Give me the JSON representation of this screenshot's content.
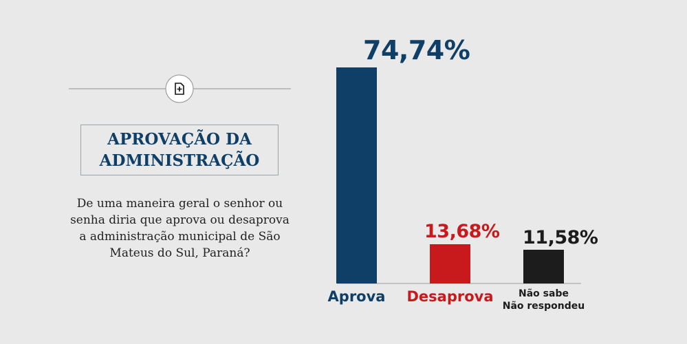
{
  "chart_data": {
    "type": "bar",
    "title": "APROVAÇÃO DA ADMINISTRAÇÃO",
    "subtitle": "De uma maneira geral o senhor ou senha diria que aprova ou desaprova a administração municipal de São Mateus do Sul, Paraná?",
    "categories": [
      "Aprova",
      "Desaprova",
      "Não sabe\nNão respondeu"
    ],
    "values": [
      74.74,
      13.68,
      11.58
    ],
    "value_labels": [
      "74,74%",
      "13,68%",
      "11,58%"
    ],
    "colors": [
      "#0f3f66",
      "#c8191d",
      "#1c1c1c"
    ]
  }
}
